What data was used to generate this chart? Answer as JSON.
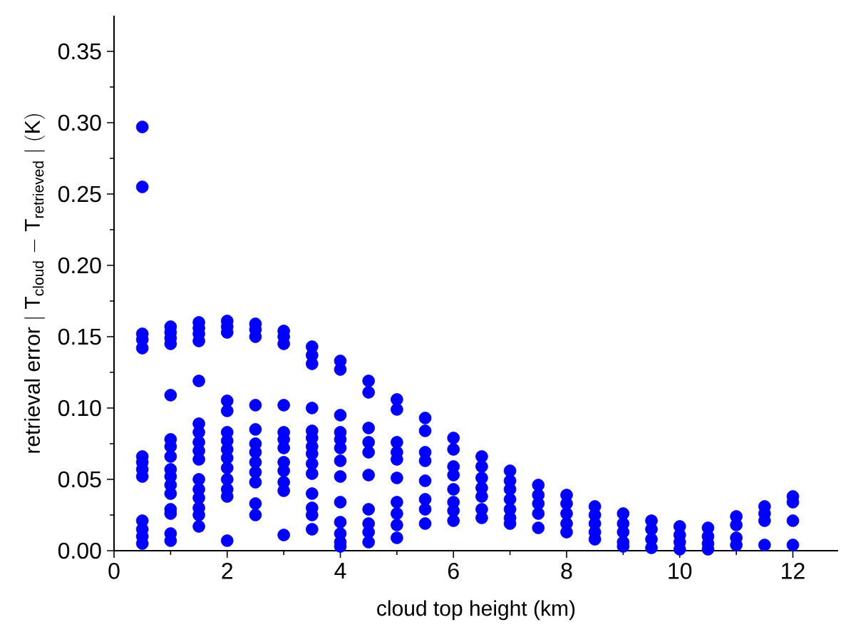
{
  "chart_data": {
    "type": "scatter",
    "xlabel": "cloud top height (km)",
    "ylabel": "\\mathrm{retrieval\\ error}\\ |\\ \\mathrm{T}_{\\mathrm{cloud}}\\ \\mathrm{-}\\ \\mathrm{T}_{\\mathrm{retrieved}}\\ |\\ \\mathrm{(K)}",
    "color": "#0000ff",
    "marker": "circle",
    "x": [
      0.5,
      0.5,
      0.5,
      0.5,
      0.5,
      0.5,
      0.5,
      0.5,
      0.5,
      0.5,
      0.5,
      0.5,
      0.5,
      1,
      1,
      1,
      1,
      1,
      1,
      1,
      1,
      1,
      1,
      1,
      1,
      1,
      1,
      1,
      1,
      1.5,
      1.5,
      1.5,
      1.5,
      1.5,
      1.5,
      1.5,
      1.5,
      1.5,
      1.5,
      1.5,
      1.5,
      1.5,
      1.5,
      1.5,
      1.5,
      2,
      2,
      2,
      2,
      2,
      2,
      2,
      2,
      2,
      2,
      2,
      2,
      2,
      2,
      2.5,
      2.5,
      2.5,
      2.5,
      2.5,
      2.5,
      2.5,
      2.5,
      2.5,
      2.5,
      2.5,
      2.5,
      3,
      3,
      3,
      3,
      3,
      3,
      3,
      3,
      3,
      3,
      3,
      3,
      3.5,
      3.5,
      3.5,
      3.5,
      3.5,
      3.5,
      3.5,
      3.5,
      3.5,
      3.5,
      3.5,
      3.5,
      3.5,
      3.5,
      4,
      4,
      4,
      4,
      4,
      4,
      4,
      4,
      4,
      4,
      4,
      4,
      4,
      4.5,
      4.5,
      4.5,
      4.5,
      4.5,
      4.5,
      4.5,
      4.5,
      4.5,
      4.5,
      5,
      5,
      5,
      5,
      5,
      5,
      5,
      5,
      5,
      5,
      5.5,
      5.5,
      5.5,
      5.5,
      5.5,
      5.5,
      5.5,
      5.5,
      6,
      6,
      6,
      6,
      6,
      6,
      6,
      6,
      6.5,
      6.5,
      6.5,
      6.5,
      6.5,
      6.5,
      6.5,
      7,
      7,
      7,
      7,
      7,
      7,
      7,
      7.5,
      7.5,
      7.5,
      7.5,
      7.5,
      8,
      8,
      8,
      8,
      8,
      8.5,
      8.5,
      8.5,
      8.5,
      8.5,
      9,
      9,
      9,
      9,
      9,
      9.5,
      9.5,
      9.5,
      9.5,
      10,
      10,
      10,
      10,
      10.5,
      10.5,
      10.5,
      10.5,
      11,
      11,
      11,
      11,
      11.5,
      11.5,
      11.5,
      11.5,
      12,
      12,
      12,
      12
    ],
    "values": [
      0.297,
      0.255,
      0.152,
      0.148,
      0.142,
      0.066,
      0.062,
      0.057,
      0.052,
      0.021,
      0.015,
      0.01,
      0.005,
      0.157,
      0.153,
      0.149,
      0.145,
      0.109,
      0.078,
      0.073,
      0.066,
      0.057,
      0.052,
      0.046,
      0.04,
      0.029,
      0.026,
      0.012,
      0.007,
      0.16,
      0.156,
      0.152,
      0.147,
      0.119,
      0.089,
      0.083,
      0.076,
      0.07,
      0.064,
      0.05,
      0.043,
      0.037,
      0.03,
      0.025,
      0.017,
      0.161,
      0.157,
      0.153,
      0.105,
      0.098,
      0.083,
      0.077,
      0.071,
      0.065,
      0.058,
      0.05,
      0.043,
      0.038,
      0.007,
      0.159,
      0.155,
      0.15,
      0.102,
      0.085,
      0.075,
      0.069,
      0.062,
      0.055,
      0.048,
      0.033,
      0.025,
      0.154,
      0.15,
      0.145,
      0.102,
      0.083,
      0.078,
      0.072,
      0.062,
      0.056,
      0.048,
      0.042,
      0.011,
      0.143,
      0.137,
      0.131,
      0.1,
      0.084,
      0.079,
      0.073,
      0.068,
      0.061,
      0.054,
      0.04,
      0.03,
      0.025,
      0.015,
      0.133,
      0.127,
      0.095,
      0.083,
      0.078,
      0.072,
      0.063,
      0.052,
      0.034,
      0.02,
      0.012,
      0.006,
      0.003,
      0.119,
      0.111,
      0.086,
      0.076,
      0.069,
      0.053,
      0.029,
      0.019,
      0.013,
      0.006,
      0.106,
      0.099,
      0.076,
      0.069,
      0.064,
      0.051,
      0.034,
      0.026,
      0.018,
      0.009,
      0.093,
      0.084,
      0.069,
      0.063,
      0.049,
      0.036,
      0.029,
      0.019,
      0.079,
      0.071,
      0.059,
      0.053,
      0.043,
      0.034,
      0.028,
      0.021,
      0.066,
      0.059,
      0.051,
      0.044,
      0.038,
      0.029,
      0.023,
      0.056,
      0.049,
      0.043,
      0.036,
      0.029,
      0.023,
      0.019,
      0.046,
      0.039,
      0.033,
      0.026,
      0.016,
      0.039,
      0.033,
      0.026,
      0.019,
      0.013,
      0.031,
      0.025,
      0.019,
      0.013,
      0.008,
      0.026,
      0.019,
      0.013,
      0.006,
      0.003,
      0.021,
      0.015,
      0.008,
      0.002,
      0.017,
      0.011,
      0.006,
      0.001,
      0.016,
      0.01,
      0.005,
      0.001,
      0.024,
      0.018,
      0.009,
      0.004,
      0.031,
      0.026,
      0.021,
      0.004,
      0.038,
      0.034,
      0.021,
      0.004
    ],
    "xlim": [
      0,
      12.8
    ],
    "ylim": [
      0,
      0.375
    ],
    "xticks": [
      0,
      2,
      4,
      6,
      8,
      10,
      12
    ],
    "yticks": [
      {
        "value": 0,
        "label": "0.00"
      },
      {
        "value": 0.05,
        "label": "0.05"
      },
      {
        "value": 0.1,
        "label": "0.10"
      },
      {
        "value": 0.15,
        "label": "0.15"
      },
      {
        "value": 0.2,
        "label": "0.20"
      },
      {
        "value": 0.25,
        "label": "0.25"
      },
      {
        "value": 0.3,
        "label": "0.30"
      },
      {
        "value": 0.35,
        "label": "0.35"
      }
    ]
  }
}
